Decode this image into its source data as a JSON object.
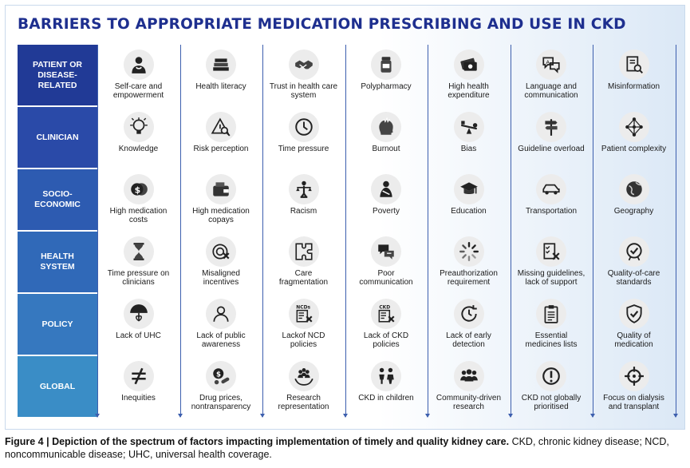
{
  "title": "BARRIERS TO APPROPRIATE MEDICATION PRESCRIBING AND USE IN CKD",
  "rows": [
    {
      "header": "PATIENT OR\nDISEASE-\nRELATED",
      "color": "#213a96",
      "cells": [
        {
          "label": "Self-care and\nempowerment",
          "icon": "self-care-icon"
        },
        {
          "label": "Health literacy",
          "icon": "books-icon"
        },
        {
          "label": "Trust in health care\nsystem",
          "icon": "handshake-icon"
        },
        {
          "label": "Polypharmacy",
          "icon": "pill-bottle-icon"
        },
        {
          "label": "High health\nexpenditure",
          "icon": "money-icon"
        },
        {
          "label": "Language and\ncommunication",
          "icon": "speech-bubbles-icon"
        },
        {
          "label": "Misinformation",
          "icon": "document-search-icon"
        }
      ]
    },
    {
      "header": "CLINICIAN",
      "color": "#2a4aa8",
      "cells": [
        {
          "label": "Knowledge",
          "icon": "lightbulb-icon"
        },
        {
          "label": "Risk perception",
          "icon": "warning-search-icon"
        },
        {
          "label": "Time pressure",
          "icon": "clock-icon"
        },
        {
          "label": "Burnout",
          "icon": "burnout-head-icon"
        },
        {
          "label": "Bias",
          "icon": "seesaw-icon"
        },
        {
          "label": "Guideline overload",
          "icon": "signpost-icon"
        },
        {
          "label": "Patient complexity",
          "icon": "network-icon"
        }
      ]
    },
    {
      "header": "SOCIO-\nECONOMIC",
      "color": "#2d5bb1",
      "cells": [
        {
          "label": "High medication\ncosts",
          "icon": "coins-icon"
        },
        {
          "label": "High medication\ncopays",
          "icon": "wallet-icon"
        },
        {
          "label": "Racism",
          "icon": "justice-icon"
        },
        {
          "label": "Poverty",
          "icon": "poverty-icon"
        },
        {
          "label": "Education",
          "icon": "graduation-cap-icon"
        },
        {
          "label": "Transportation",
          "icon": "car-icon"
        },
        {
          "label": "Geography",
          "icon": "globe-icon"
        }
      ]
    },
    {
      "header": "HEALTH\nSYSTEM",
      "color": "#3069b8",
      "cells": [
        {
          "label": "Time pressure on\nclinicians",
          "icon": "hourglass-icon"
        },
        {
          "label": "Misaligned\nincentives",
          "icon": "target-x-icon"
        },
        {
          "label": "Care\nfragmentation",
          "icon": "puzzle-icon"
        },
        {
          "label": "Poor\ncommunication",
          "icon": "chat-icon"
        },
        {
          "label": "Preauthorization\nrequirement",
          "icon": "loading-icon"
        },
        {
          "label": "Missing guidelines,\nlack of support",
          "icon": "checklist-x-icon"
        },
        {
          "label": "Quality-of-care\nstandards",
          "icon": "quality-badge-icon"
        }
      ]
    },
    {
      "header": "POLICY",
      "color": "#3678bf",
      "cells": [
        {
          "label": "Lack of UHC",
          "icon": "umbrella-heart-icon"
        },
        {
          "label": "Lack of public\nawareness",
          "icon": "person-icon"
        },
        {
          "label": "Lackof NCD\npolicies",
          "icon": "ncd-checklist-icon",
          "tag": "NCDs"
        },
        {
          "label": "Lack of CKD\npolicies",
          "icon": "ckd-checklist-icon",
          "tag": "CKD"
        },
        {
          "label": "Lack of early\ndetection",
          "icon": "clock-arrow-icon"
        },
        {
          "label": "Essential\nmedicines lists",
          "icon": "clipboard-list-icon"
        },
        {
          "label": "Quality of\nmedication",
          "icon": "shield-check-icon"
        }
      ]
    },
    {
      "header": "GLOBAL",
      "color": "#3a8dc6",
      "cells": [
        {
          "label": "Inequities",
          "icon": "not-equal-icon"
        },
        {
          "label": "Drug prices,\nnontransparency",
          "icon": "coin-pills-icon"
        },
        {
          "label": "Research\nrepresentation",
          "icon": "community-hands-icon"
        },
        {
          "label": "CKD in children",
          "icon": "children-icon"
        },
        {
          "label": "Community-driven\nresearch",
          "icon": "group-icon"
        },
        {
          "label": "CKD not globally\nprioritised",
          "icon": "exclamation-icon"
        },
        {
          "label": "Focus on dialysis\nand transplant",
          "icon": "crosshair-icon"
        }
      ]
    }
  ],
  "caption": {
    "bold": "Figure 4 | Depiction of the spectrum of factors impacting implementation of timely and quality kidney care.",
    "rest": " CKD, chronic kidney disease; NCD, noncommunicable disease; UHC, universal health coverage."
  }
}
